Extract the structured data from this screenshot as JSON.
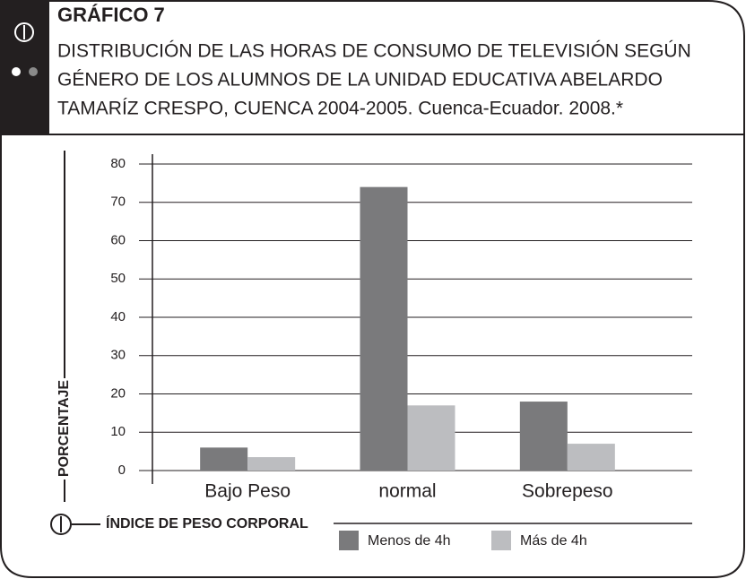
{
  "chart_data": {
    "type": "bar",
    "title": "GRÁFICO 7",
    "subtitle": [
      "DISTRIBUCIÓN DE LAS HORAS DE CONSUMO DE TELEVISIÓN SEGÚN",
      "GÉNERO DE LOS ALUMNOS DE LA UNIDAD EDUCATIVA ABELARDO",
      "TAMARÍZ CRESPO, CUENCA 2004-2005. Cuenca-Ecuador. 2008.*"
    ],
    "ylabel": "PORCENTAJE",
    "xlabel": "ÍNDICE DE PESO CORPORAL",
    "categories": [
      "Bajo Peso",
      "normal",
      "Sobrepeso"
    ],
    "series": [
      {
        "name": "Menos de 4h",
        "color": "#7a7a7c",
        "values": [
          6,
          74,
          18
        ]
      },
      {
        "name": "Más de 4h",
        "color": "#bcbdc0",
        "values": [
          3.5,
          17,
          7
        ]
      }
    ],
    "ylim": [
      0,
      80
    ],
    "yticks": [
      0,
      10,
      20,
      30,
      40,
      50,
      60,
      70,
      80
    ],
    "grid": true
  }
}
